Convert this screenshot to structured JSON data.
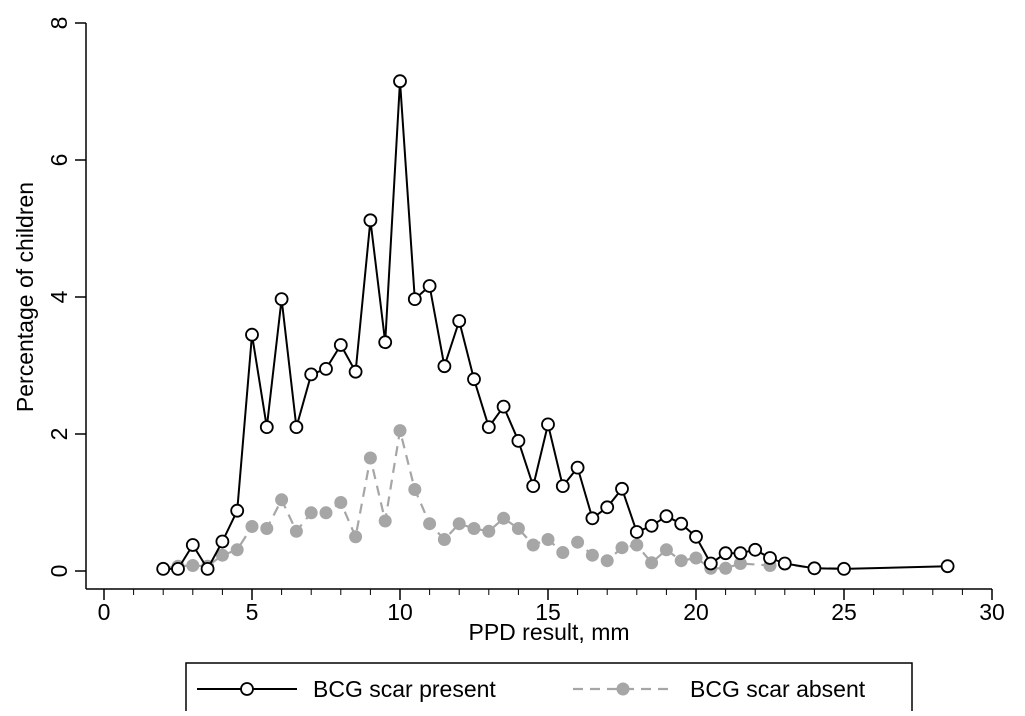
{
  "chart_data": {
    "type": "line",
    "title": "",
    "xlabel": "PPD result, mm",
    "ylabel": "Percentage of children",
    "xlim": [
      0,
      30
    ],
    "ylim": [
      0,
      8
    ],
    "x_ticks": [
      "0",
      "5",
      "10",
      "15",
      "20",
      "25",
      "30"
    ],
    "y_ticks": [
      "0",
      "2",
      "4",
      "6",
      "8"
    ],
    "grid": false,
    "legend_position": "bottom",
    "series": [
      {
        "name": "BCG scar present",
        "color": "#000000",
        "marker": "hollow-circle",
        "line_style": "solid",
        "points": [
          [
            2,
            0.03
          ],
          [
            2.5,
            0.03
          ],
          [
            3,
            0.38
          ],
          [
            3.5,
            0.03
          ],
          [
            4,
            0.43
          ],
          [
            4.5,
            0.88
          ],
          [
            5,
            3.45
          ],
          [
            5.5,
            2.1
          ],
          [
            6,
            3.97
          ],
          [
            6.5,
            2.1
          ],
          [
            7,
            2.87
          ],
          [
            7.5,
            2.95
          ],
          [
            8,
            3.3
          ],
          [
            8.5,
            2.91
          ],
          [
            9,
            5.12
          ],
          [
            9.5,
            3.34
          ],
          [
            10,
            7.15
          ],
          [
            10.5,
            3.97
          ],
          [
            11,
            4.16
          ],
          [
            11.5,
            2.99
          ],
          [
            12,
            3.65
          ],
          [
            12.5,
            2.8
          ],
          [
            13,
            2.1
          ],
          [
            13.5,
            2.4
          ],
          [
            14,
            1.9
          ],
          [
            14.5,
            1.24
          ],
          [
            15,
            2.14
          ],
          [
            15.5,
            1.24
          ],
          [
            16,
            1.51
          ],
          [
            16.5,
            0.77
          ],
          [
            17,
            0.93
          ],
          [
            17.5,
            1.2
          ],
          [
            18,
            0.57
          ],
          [
            18.5,
            0.66
          ],
          [
            19,
            0.8
          ],
          [
            19.5,
            0.69
          ],
          [
            20,
            0.5
          ],
          [
            20.5,
            0.11
          ],
          [
            21,
            0.26
          ],
          [
            21.5,
            0.26
          ],
          [
            22,
            0.31
          ],
          [
            22.5,
            0.19
          ],
          [
            23,
            0.11
          ],
          [
            24,
            0.04
          ],
          [
            25,
            0.03
          ],
          [
            28.5,
            0.07
          ]
        ]
      },
      {
        "name": "BCG scar absent",
        "color": "#a6a6a6",
        "marker": "filled-circle",
        "line_style": "dashed",
        "points": [
          [
            2,
            0.04
          ],
          [
            2.5,
            0.07
          ],
          [
            3,
            0.08
          ],
          [
            3.5,
            0.07
          ],
          [
            4,
            0.23
          ],
          [
            4.5,
            0.31
          ],
          [
            5,
            0.65
          ],
          [
            5.5,
            0.62
          ],
          [
            6,
            1.04
          ],
          [
            6.5,
            0.58
          ],
          [
            7,
            0.85
          ],
          [
            7.5,
            0.85
          ],
          [
            8,
            1.0
          ],
          [
            8.5,
            0.5
          ],
          [
            9,
            1.65
          ],
          [
            9.5,
            0.73
          ],
          [
            10,
            2.05
          ],
          [
            10.5,
            1.19
          ],
          [
            11,
            0.69
          ],
          [
            11.5,
            0.46
          ],
          [
            12,
            0.69
          ],
          [
            12.5,
            0.62
          ],
          [
            13,
            0.58
          ],
          [
            13.5,
            0.77
          ],
          [
            14,
            0.62
          ],
          [
            14.5,
            0.38
          ],
          [
            15,
            0.46
          ],
          [
            15.5,
            0.27
          ],
          [
            16,
            0.42
          ],
          [
            16.5,
            0.23
          ],
          [
            17,
            0.15
          ],
          [
            17.5,
            0.34
          ],
          [
            18,
            0.38
          ],
          [
            18.5,
            0.12
          ],
          [
            19,
            0.31
          ],
          [
            19.5,
            0.15
          ],
          [
            20,
            0.19
          ],
          [
            20.5,
            0.04
          ],
          [
            21,
            0.04
          ],
          [
            21.5,
            0.11
          ],
          [
            22.5,
            0.08
          ],
          [
            23,
            0.1
          ],
          [
            24,
            0.04
          ],
          [
            25,
            0.04
          ]
        ]
      }
    ]
  }
}
